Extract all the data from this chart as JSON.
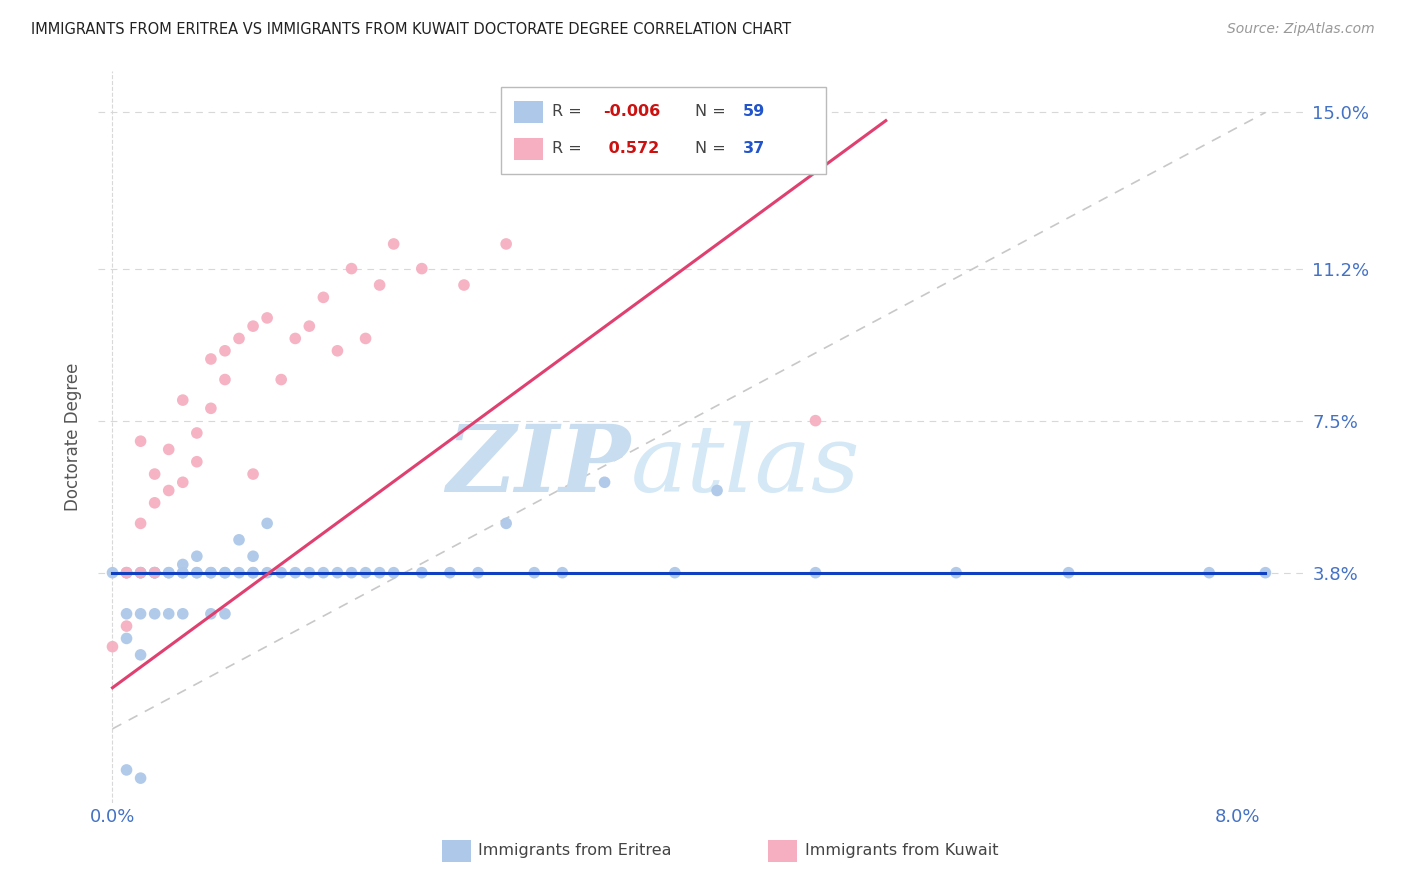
{
  "title": "IMMIGRANTS FROM ERITREA VS IMMIGRANTS FROM KUWAIT DOCTORATE DEGREE CORRELATION CHART",
  "source": "Source: ZipAtlas.com",
  "ylabel": "Doctorate Degree",
  "color_eritrea": "#adc8e8",
  "color_kuwait": "#f5afc0",
  "color_eritrea_line": "#1040c0",
  "color_kuwait_line": "#e04070",
  "color_diagonal": "#c8c8c8",
  "watermark_zip": "ZIP",
  "watermark_atlas": "atlas",
  "xlim": [
    0.0,
    0.085
  ],
  "ylim": [
    -0.018,
    0.16
  ],
  "ytick_vals": [
    0.0,
    0.038,
    0.075,
    0.112,
    0.15
  ],
  "ytick_labels": [
    "",
    "3.8%",
    "7.5%",
    "11.2%",
    "15.0%"
  ],
  "xtick_vals": [
    0.0,
    0.02,
    0.04,
    0.06,
    0.08
  ],
  "xtick_labels": [
    "0.0%",
    "",
    "",
    "",
    "8.0%"
  ],
  "eritrea_x": [
    0.0,
    0.001,
    0.001,
    0.001,
    0.002,
    0.002,
    0.002,
    0.002,
    0.003,
    0.003,
    0.003,
    0.003,
    0.004,
    0.004,
    0.004,
    0.005,
    0.005,
    0.005,
    0.005,
    0.006,
    0.006,
    0.006,
    0.007,
    0.007,
    0.007,
    0.008,
    0.008,
    0.008,
    0.009,
    0.009,
    0.01,
    0.01,
    0.01,
    0.011,
    0.011,
    0.012,
    0.013,
    0.014,
    0.015,
    0.016,
    0.017,
    0.018,
    0.019,
    0.02,
    0.022,
    0.024,
    0.026,
    0.028,
    0.03,
    0.032,
    0.035,
    0.04,
    0.043,
    0.05,
    0.06,
    0.068,
    0.078,
    0.082,
    0.001,
    0.002
  ],
  "eritrea_y": [
    0.038,
    0.038,
    0.028,
    0.022,
    0.038,
    0.038,
    0.028,
    0.018,
    0.038,
    0.038,
    0.038,
    0.028,
    0.038,
    0.038,
    0.028,
    0.038,
    0.038,
    0.04,
    0.028,
    0.038,
    0.038,
    0.042,
    0.038,
    0.038,
    0.028,
    0.038,
    0.038,
    0.028,
    0.038,
    0.046,
    0.038,
    0.038,
    0.042,
    0.038,
    0.05,
    0.038,
    0.038,
    0.038,
    0.038,
    0.038,
    0.038,
    0.038,
    0.038,
    0.038,
    0.038,
    0.038,
    0.038,
    0.05,
    0.038,
    0.038,
    0.06,
    0.038,
    0.058,
    0.038,
    0.038,
    0.038,
    0.038,
    0.038,
    -0.01,
    -0.012
  ],
  "kuwait_x": [
    0.0,
    0.001,
    0.001,
    0.001,
    0.002,
    0.002,
    0.002,
    0.003,
    0.003,
    0.003,
    0.004,
    0.004,
    0.005,
    0.005,
    0.006,
    0.006,
    0.007,
    0.007,
    0.008,
    0.008,
    0.009,
    0.01,
    0.01,
    0.011,
    0.012,
    0.013,
    0.014,
    0.015,
    0.016,
    0.017,
    0.018,
    0.019,
    0.02,
    0.022,
    0.025,
    0.028,
    0.05
  ],
  "kuwait_y": [
    0.02,
    0.038,
    0.025,
    0.038,
    0.038,
    0.05,
    0.07,
    0.038,
    0.055,
    0.062,
    0.058,
    0.068,
    0.06,
    0.08,
    0.065,
    0.072,
    0.078,
    0.09,
    0.085,
    0.092,
    0.095,
    0.062,
    0.098,
    0.1,
    0.085,
    0.095,
    0.098,
    0.105,
    0.092,
    0.112,
    0.095,
    0.108,
    0.118,
    0.112,
    0.108,
    0.118,
    0.075
  ],
  "eritrea_line_x": [
    0.0,
    0.082
  ],
  "eritrea_line_y": [
    0.038,
    0.038
  ],
  "kuwait_line_x": [
    0.0,
    0.055
  ],
  "kuwait_line_y": [
    0.01,
    0.148
  ],
  "diag_line_x": [
    0.0,
    0.082
  ],
  "diag_line_y": [
    0.0,
    0.15
  ]
}
